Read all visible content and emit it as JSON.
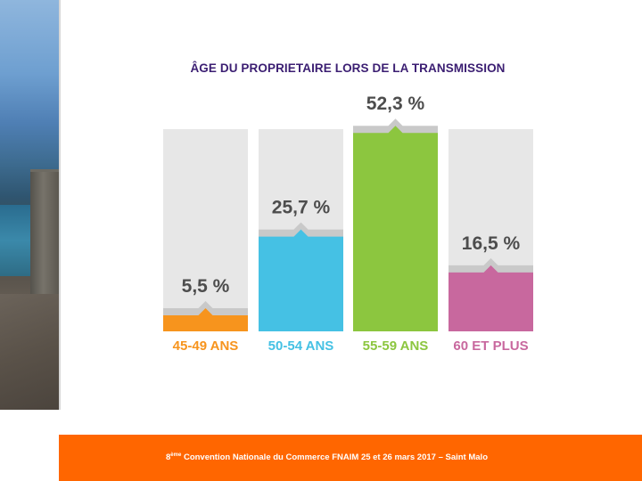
{
  "chart_data": {
    "type": "bar",
    "title": "ÂGE DU PROPRIETAIRE LORS DE LA TRANSMISSION",
    "categories": [
      "45-49 ANS",
      "50-54 ANS",
      "55-59 ANS",
      "60 ET PLUS"
    ],
    "values": [
      5.5,
      25.7,
      52.3,
      16.5
    ],
    "value_labels": [
      "5,5 %",
      "25,7 %",
      "52,3 %",
      "16,5 %"
    ],
    "colors": [
      "#f7941d",
      "#45c1e4",
      "#8cc63f",
      "#c8689e"
    ],
    "ylim": [
      0,
      100
    ]
  },
  "footer": {
    "ordinal": "8",
    "ordinal_suffix": "ème",
    "text": " Convention Nationale du Commerce FNAIM 25 et 26 mars 2017 – Saint Malo"
  }
}
